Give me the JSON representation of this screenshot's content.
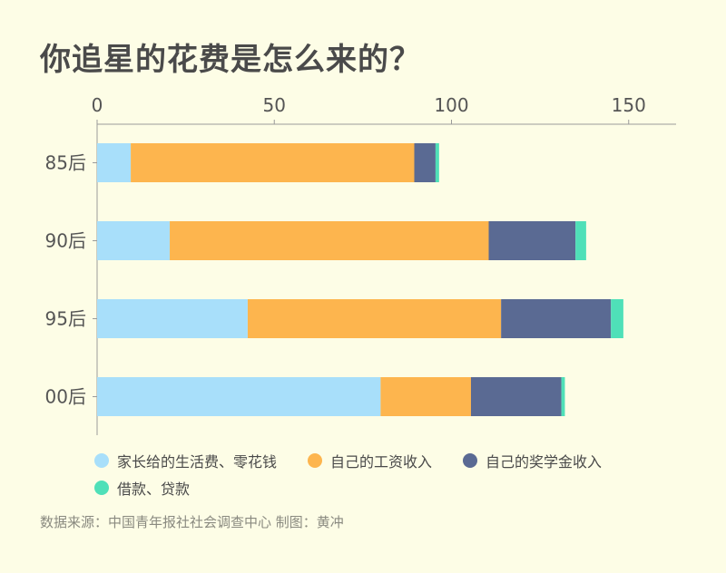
{
  "title": "你追星的花费是怎么来的？",
  "source": "数据来源：中国青年报社社会调查中心 制图：黄冲",
  "chart_data": {
    "type": "bar",
    "orientation": "horizontal",
    "stacked": true,
    "categories": [
      "85后",
      "90后",
      "95后",
      "00后"
    ],
    "series": [
      {
        "name": "家长给的生活费、零花钱",
        "color": "#a8dffa",
        "values": [
          9.5,
          20.5,
          42.5,
          80
        ]
      },
      {
        "name": "自己的工资收入",
        "color": "#fdb54e",
        "values": [
          80,
          90,
          71.5,
          25.5
        ]
      },
      {
        "name": "自己的奖学金收入",
        "color": "#5a6a93",
        "values": [
          6,
          24.5,
          31,
          25.5
        ]
      },
      {
        "name": "借款、贷款",
        "color": "#4fe0b8",
        "values": [
          1,
          3,
          3.5,
          1
        ]
      }
    ],
    "xlim": [
      0,
      160
    ],
    "xticks": [
      0,
      50,
      100,
      150
    ],
    "legend": "bottom",
    "grid": false
  }
}
